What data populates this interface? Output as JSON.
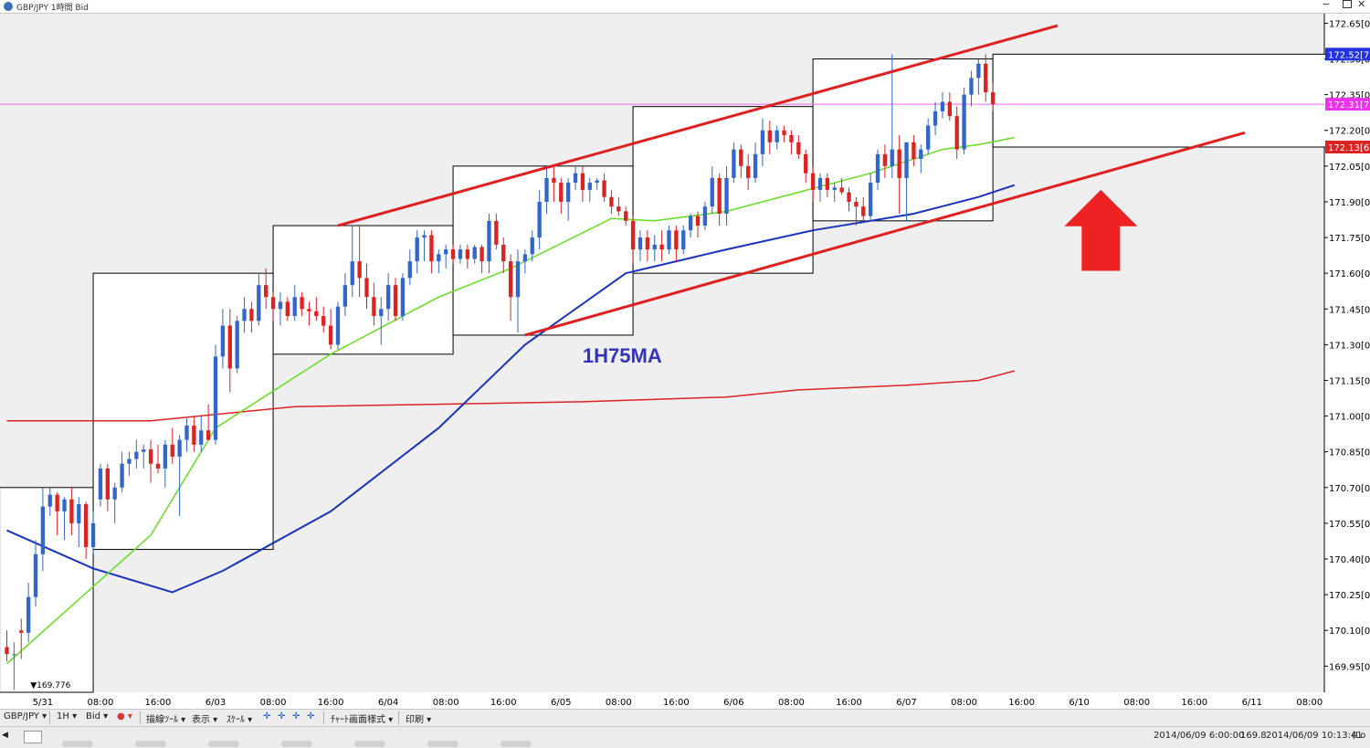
{
  "window": {
    "title": "GBP/JPY 1時間 Bid"
  },
  "colors": {
    "bull": "#3366cc",
    "bear": "#dd2222",
    "ma_green": "#66dd22",
    "ma_blue": "#1a33bb",
    "ma_red": "#dd2222",
    "trendline": "#e02020",
    "box": "#000000",
    "plot_bg": "#efefef",
    "box_fill": "#ffffff",
    "hline_magenta": "#ee66ee",
    "arrow": "#ee2222",
    "label_blue_bg": "#2233dd",
    "label_magenta_bg": "#ee33ee",
    "label_red_bg": "#dd2222",
    "annotation": "#3333bb"
  },
  "chart_data": {
    "type": "candlestick",
    "title": "GBP/JPY 1時間 Bid",
    "ylim": [
      169.84,
      172.69
    ],
    "yticks": [
      "172.65[0]",
      "172.50[0]",
      "172.35[0]",
      "172.20[0]",
      "172.05[0]",
      "171.90[0]",
      "171.75[0]",
      "171.60[0]",
      "171.45[0]",
      "171.30[0]",
      "171.15[0]",
      "171.00[0]",
      "170.85[0]",
      "170.70[0]",
      "170.55[0]",
      "170.40[0]",
      "170.25[0]",
      "170.10[0]",
      "169.95[0]"
    ],
    "ytick_values": [
      172.65,
      172.5,
      172.35,
      172.2,
      172.05,
      171.9,
      171.75,
      171.6,
      171.45,
      171.3,
      171.15,
      171.0,
      170.85,
      170.7,
      170.55,
      170.4,
      170.25,
      170.1,
      169.95
    ],
    "xticks": [
      "5/31",
      "08:00",
      "16:00",
      "6/03",
      "08:00",
      "16:00",
      "6/04",
      "08:00",
      "16:00",
      "6/05",
      "08:00",
      "16:00",
      "6/06",
      "08:00",
      "16:00",
      "6/07",
      "08:00",
      "16:00",
      "6/10",
      "08:00",
      "16:00",
      "6/11",
      "08:00"
    ],
    "xtick_bars": [
      5,
      13,
      21,
      29,
      37,
      45,
      53,
      61,
      69,
      77,
      85,
      93,
      101,
      109,
      117,
      125,
      133,
      141,
      149,
      157,
      165,
      173,
      181
    ],
    "bar_count_visible": 184,
    "bar_offset": 0.95,
    "candles": [
      {
        "o": 170.03,
        "h": 170.1,
        "l": 169.97,
        "c": 170.0
      },
      {
        "o": 170.0,
        "h": 170.05,
        "l": 169.85,
        "c": 170.0
      },
      {
        "o": 170.1,
        "h": 170.15,
        "l": 169.98,
        "c": 170.09
      },
      {
        "o": 170.09,
        "h": 170.3,
        "l": 170.05,
        "c": 170.24
      },
      {
        "o": 170.24,
        "h": 170.48,
        "l": 170.2,
        "c": 170.42
      },
      {
        "o": 170.42,
        "h": 170.7,
        "l": 170.35,
        "c": 170.62
      },
      {
        "o": 170.62,
        "h": 170.7,
        "l": 170.58,
        "c": 170.67
      },
      {
        "o": 170.67,
        "h": 170.68,
        "l": 170.5,
        "c": 170.6
      },
      {
        "o": 170.6,
        "h": 170.66,
        "l": 170.48,
        "c": 170.65
      },
      {
        "o": 170.65,
        "h": 170.7,
        "l": 170.5,
        "c": 170.55
      },
      {
        "o": 170.55,
        "h": 170.66,
        "l": 170.45,
        "c": 170.63
      },
      {
        "o": 170.63,
        "h": 170.64,
        "l": 170.4,
        "c": 170.45
      },
      {
        "o": 170.45,
        "h": 170.6,
        "l": 170.42,
        "c": 170.55
      },
      {
        "o": 170.65,
        "h": 170.8,
        "l": 170.62,
        "c": 170.78
      },
      {
        "o": 170.78,
        "h": 170.8,
        "l": 170.6,
        "c": 170.65
      },
      {
        "o": 170.65,
        "h": 170.72,
        "l": 170.55,
        "c": 170.7
      },
      {
        "o": 170.7,
        "h": 170.85,
        "l": 170.68,
        "c": 170.8
      },
      {
        "o": 170.8,
        "h": 170.85,
        "l": 170.75,
        "c": 170.82
      },
      {
        "o": 170.82,
        "h": 170.9,
        "l": 170.78,
        "c": 170.85
      },
      {
        "o": 170.85,
        "h": 170.88,
        "l": 170.78,
        "c": 170.86
      },
      {
        "o": 170.86,
        "h": 170.9,
        "l": 170.72,
        "c": 170.8
      },
      {
        "o": 170.8,
        "h": 170.88,
        "l": 170.76,
        "c": 170.78
      },
      {
        "o": 170.78,
        "h": 170.9,
        "l": 170.7,
        "c": 170.88
      },
      {
        "o": 170.88,
        "h": 170.95,
        "l": 170.8,
        "c": 170.83
      },
      {
        "o": 170.83,
        "h": 170.92,
        "l": 170.58,
        "c": 170.9
      },
      {
        "o": 170.9,
        "h": 170.99,
        "l": 170.85,
        "c": 170.96
      },
      {
        "o": 170.96,
        "h": 171.0,
        "l": 170.85,
        "c": 170.88
      },
      {
        "o": 170.88,
        "h": 171.0,
        "l": 170.85,
        "c": 170.94
      },
      {
        "o": 170.94,
        "h": 171.05,
        "l": 170.9,
        "c": 170.9
      },
      {
        "o": 170.9,
        "h": 171.3,
        "l": 170.88,
        "c": 171.25
      },
      {
        "o": 171.25,
        "h": 171.45,
        "l": 171.2,
        "c": 171.38
      },
      {
        "o": 171.38,
        "h": 171.45,
        "l": 171.1,
        "c": 171.2
      },
      {
        "o": 171.2,
        "h": 171.42,
        "l": 171.18,
        "c": 171.4
      },
      {
        "o": 171.4,
        "h": 171.5,
        "l": 171.35,
        "c": 171.45
      },
      {
        "o": 171.45,
        "h": 171.48,
        "l": 171.35,
        "c": 171.4
      },
      {
        "o": 171.4,
        "h": 171.6,
        "l": 171.38,
        "c": 171.55
      },
      {
        "o": 171.55,
        "h": 171.62,
        "l": 171.45,
        "c": 171.5
      },
      {
        "o": 171.5,
        "h": 171.52,
        "l": 171.4,
        "c": 171.45
      },
      {
        "o": 171.45,
        "h": 171.52,
        "l": 171.38,
        "c": 171.48
      },
      {
        "o": 171.48,
        "h": 171.5,
        "l": 171.4,
        "c": 171.42
      },
      {
        "o": 171.42,
        "h": 171.55,
        "l": 171.4,
        "c": 171.5
      },
      {
        "o": 171.5,
        "h": 171.52,
        "l": 171.42,
        "c": 171.45
      },
      {
        "o": 171.45,
        "h": 171.48,
        "l": 171.38,
        "c": 171.44
      },
      {
        "o": 171.44,
        "h": 171.5,
        "l": 171.4,
        "c": 171.42
      },
      {
        "o": 171.42,
        "h": 171.46,
        "l": 171.35,
        "c": 171.38
      },
      {
        "o": 171.38,
        "h": 171.45,
        "l": 171.28,
        "c": 171.3
      },
      {
        "o": 171.3,
        "h": 171.48,
        "l": 171.28,
        "c": 171.46
      },
      {
        "o": 171.46,
        "h": 171.6,
        "l": 171.42,
        "c": 171.55
      },
      {
        "o": 171.55,
        "h": 171.8,
        "l": 171.5,
        "c": 171.65
      },
      {
        "o": 171.65,
        "h": 171.8,
        "l": 171.5,
        "c": 171.58
      },
      {
        "o": 171.58,
        "h": 171.64,
        "l": 171.45,
        "c": 171.5
      },
      {
        "o": 171.5,
        "h": 171.56,
        "l": 171.38,
        "c": 171.42
      },
      {
        "o": 171.42,
        "h": 171.5,
        "l": 171.3,
        "c": 171.45
      },
      {
        "o": 171.45,
        "h": 171.6,
        "l": 171.4,
        "c": 171.55
      },
      {
        "o": 171.55,
        "h": 171.58,
        "l": 171.4,
        "c": 171.42
      },
      {
        "o": 171.42,
        "h": 171.6,
        "l": 171.4,
        "c": 171.58
      },
      {
        "o": 171.58,
        "h": 171.7,
        "l": 171.55,
        "c": 171.65
      },
      {
        "o": 171.65,
        "h": 171.78,
        "l": 171.6,
        "c": 171.75
      },
      {
        "o": 171.75,
        "h": 171.78,
        "l": 171.65,
        "c": 171.76
      },
      {
        "o": 171.76,
        "h": 171.78,
        "l": 171.6,
        "c": 171.65
      },
      {
        "o": 171.65,
        "h": 171.7,
        "l": 171.6,
        "c": 171.68
      },
      {
        "o": 171.68,
        "h": 171.72,
        "l": 171.62,
        "c": 171.7
      },
      {
        "o": 171.7,
        "h": 171.72,
        "l": 171.64,
        "c": 171.66
      },
      {
        "o": 171.66,
        "h": 171.72,
        "l": 171.64,
        "c": 171.7
      },
      {
        "o": 171.7,
        "h": 171.72,
        "l": 171.62,
        "c": 171.66
      },
      {
        "o": 171.66,
        "h": 171.72,
        "l": 171.64,
        "c": 171.71
      },
      {
        "o": 171.71,
        "h": 171.72,
        "l": 171.6,
        "c": 171.65
      },
      {
        "o": 171.65,
        "h": 171.85,
        "l": 171.6,
        "c": 171.82
      },
      {
        "o": 171.82,
        "h": 171.85,
        "l": 171.7,
        "c": 171.72
      },
      {
        "o": 171.72,
        "h": 171.75,
        "l": 171.6,
        "c": 171.65
      },
      {
        "o": 171.65,
        "h": 171.68,
        "l": 171.4,
        "c": 171.5
      },
      {
        "o": 171.5,
        "h": 171.7,
        "l": 171.35,
        "c": 171.65
      },
      {
        "o": 171.65,
        "h": 171.7,
        "l": 171.6,
        "c": 171.68
      },
      {
        "o": 171.68,
        "h": 171.78,
        "l": 171.65,
        "c": 171.75
      },
      {
        "o": 171.75,
        "h": 171.95,
        "l": 171.7,
        "c": 171.9
      },
      {
        "o": 171.9,
        "h": 172.05,
        "l": 171.85,
        "c": 172.0
      },
      {
        "o": 172.0,
        "h": 172.05,
        "l": 171.9,
        "c": 171.98
      },
      {
        "o": 171.98,
        "h": 172.0,
        "l": 171.85,
        "c": 171.9
      },
      {
        "o": 171.9,
        "h": 172.0,
        "l": 171.82,
        "c": 171.98
      },
      {
        "o": 171.98,
        "h": 172.05,
        "l": 171.95,
        "c": 172.02
      },
      {
        "o": 172.02,
        "h": 172.05,
        "l": 171.9,
        "c": 171.95
      },
      {
        "o": 171.95,
        "h": 172.0,
        "l": 171.9,
        "c": 171.98
      },
      {
        "o": 171.98,
        "h": 172.0,
        "l": 171.95,
        "c": 171.99
      },
      {
        "o": 171.99,
        "h": 172.02,
        "l": 171.9,
        "c": 171.92
      },
      {
        "o": 171.92,
        "h": 171.95,
        "l": 171.85,
        "c": 171.88
      },
      {
        "o": 171.88,
        "h": 171.92,
        "l": 171.84,
        "c": 171.86
      },
      {
        "o": 171.86,
        "h": 171.88,
        "l": 171.8,
        "c": 171.82
      },
      {
        "o": 171.82,
        "h": 171.84,
        "l": 171.64,
        "c": 171.7
      },
      {
        "o": 171.7,
        "h": 171.78,
        "l": 171.65,
        "c": 171.75
      },
      {
        "o": 171.75,
        "h": 171.78,
        "l": 171.65,
        "c": 171.7
      },
      {
        "o": 171.7,
        "h": 171.76,
        "l": 171.65,
        "c": 171.72
      },
      {
        "o": 171.72,
        "h": 171.78,
        "l": 171.65,
        "c": 171.7
      },
      {
        "o": 171.7,
        "h": 171.8,
        "l": 171.68,
        "c": 171.78
      },
      {
        "o": 171.78,
        "h": 171.8,
        "l": 171.65,
        "c": 171.7
      },
      {
        "o": 171.7,
        "h": 171.8,
        "l": 171.68,
        "c": 171.78
      },
      {
        "o": 171.78,
        "h": 171.85,
        "l": 171.75,
        "c": 171.84
      },
      {
        "o": 171.84,
        "h": 171.86,
        "l": 171.75,
        "c": 171.8
      },
      {
        "o": 171.8,
        "h": 171.9,
        "l": 171.78,
        "c": 171.88
      },
      {
        "o": 171.88,
        "h": 172.05,
        "l": 171.85,
        "c": 172.0
      },
      {
        "o": 172.0,
        "h": 172.02,
        "l": 171.8,
        "c": 171.85
      },
      {
        "o": 171.85,
        "h": 172.05,
        "l": 171.8,
        "c": 172.0
      },
      {
        "o": 172.0,
        "h": 172.15,
        "l": 171.98,
        "c": 172.12
      },
      {
        "o": 172.12,
        "h": 172.14,
        "l": 172.0,
        "c": 172.05
      },
      {
        "o": 172.05,
        "h": 172.1,
        "l": 171.95,
        "c": 172.0
      },
      {
        "o": 172.0,
        "h": 172.15,
        "l": 171.98,
        "c": 172.1
      },
      {
        "o": 172.1,
        "h": 172.25,
        "l": 172.05,
        "c": 172.2
      },
      {
        "o": 172.2,
        "h": 172.24,
        "l": 172.1,
        "c": 172.15
      },
      {
        "o": 172.15,
        "h": 172.22,
        "l": 172.12,
        "c": 172.2
      },
      {
        "o": 172.2,
        "h": 172.22,
        "l": 172.15,
        "c": 172.18
      },
      {
        "o": 172.18,
        "h": 172.2,
        "l": 172.1,
        "c": 172.15
      },
      {
        "o": 172.15,
        "h": 172.18,
        "l": 172.08,
        "c": 172.1
      },
      {
        "o": 172.1,
        "h": 172.12,
        "l": 171.98,
        "c": 172.02
      },
      {
        "o": 172.02,
        "h": 172.05,
        "l": 171.9,
        "c": 171.95
      },
      {
        "o": 171.95,
        "h": 172.02,
        "l": 171.9,
        "c": 172.0
      },
      {
        "o": 172.0,
        "h": 172.02,
        "l": 171.92,
        "c": 171.95
      },
      {
        "o": 171.95,
        "h": 171.98,
        "l": 171.9,
        "c": 171.96
      },
      {
        "o": 171.96,
        "h": 172.0,
        "l": 171.93,
        "c": 171.94
      },
      {
        "o": 171.94,
        "h": 171.96,
        "l": 171.86,
        "c": 171.9
      },
      {
        "o": 171.9,
        "h": 171.92,
        "l": 171.8,
        "c": 171.88
      },
      {
        "o": 171.88,
        "h": 171.92,
        "l": 171.82,
        "c": 171.84
      },
      {
        "o": 171.84,
        "h": 172.02,
        "l": 171.82,
        "c": 171.98
      },
      {
        "o": 171.98,
        "h": 172.12,
        "l": 171.95,
        "c": 172.1
      },
      {
        "o": 172.1,
        "h": 172.14,
        "l": 172.0,
        "c": 172.05
      },
      {
        "o": 172.05,
        "h": 172.52,
        "l": 172.0,
        "c": 172.12
      },
      {
        "o": 172.12,
        "h": 172.18,
        "l": 171.85,
        "c": 172.0
      },
      {
        "o": 172.0,
        "h": 172.15,
        "l": 171.82,
        "c": 172.15
      },
      {
        "o": 172.15,
        "h": 172.18,
        "l": 172.05,
        "c": 172.08
      },
      {
        "o": 172.08,
        "h": 172.14,
        "l": 172.02,
        "c": 172.12
      },
      {
        "o": 172.12,
        "h": 172.25,
        "l": 172.1,
        "c": 172.22
      },
      {
        "o": 172.22,
        "h": 172.32,
        "l": 172.18,
        "c": 172.28
      },
      {
        "o": 172.28,
        "h": 172.36,
        "l": 172.25,
        "c": 172.32
      },
      {
        "o": 172.32,
        "h": 172.36,
        "l": 172.24,
        "c": 172.26
      },
      {
        "o": 172.26,
        "h": 172.3,
        "l": 172.08,
        "c": 172.12
      },
      {
        "o": 172.12,
        "h": 172.38,
        "l": 172.1,
        "c": 172.35
      },
      {
        "o": 172.35,
        "h": 172.45,
        "l": 172.3,
        "c": 172.42
      },
      {
        "o": 172.42,
        "h": 172.5,
        "l": 172.35,
        "c": 172.48
      },
      {
        "o": 172.48,
        "h": 172.52,
        "l": 172.32,
        "c": 172.36
      },
      {
        "o": 172.36,
        "h": 172.4,
        "l": 172.28,
        "c": 172.31
      }
    ],
    "ma_green": [
      [
        0,
        169.96
      ],
      [
        20,
        170.5
      ],
      [
        29,
        170.95
      ],
      [
        45,
        171.26
      ],
      [
        60,
        171.5
      ],
      [
        70,
        171.62
      ],
      [
        84,
        171.83
      ],
      [
        90,
        171.82
      ],
      [
        100,
        171.86
      ],
      [
        110,
        171.94
      ],
      [
        120,
        172.02
      ],
      [
        130,
        172.12
      ],
      [
        135,
        172.14
      ],
      [
        140,
        172.17
      ]
    ],
    "ma_blue": [
      [
        0,
        170.52
      ],
      [
        12,
        170.36
      ],
      [
        23,
        170.26
      ],
      [
        30,
        170.35
      ],
      [
        45,
        170.6
      ],
      [
        60,
        170.95
      ],
      [
        72,
        171.3
      ],
      [
        86,
        171.6
      ],
      [
        100,
        171.7
      ],
      [
        112,
        171.78
      ],
      [
        126,
        171.85
      ],
      [
        135,
        171.92
      ],
      [
        140,
        171.97
      ]
    ],
    "ma_red": [
      [
        0,
        170.98
      ],
      [
        20,
        170.98
      ],
      [
        40,
        171.04
      ],
      [
        60,
        171.05
      ],
      [
        80,
        171.06
      ],
      [
        100,
        171.08
      ],
      [
        110,
        171.11
      ],
      [
        125,
        171.13
      ],
      [
        135,
        171.15
      ],
      [
        140,
        171.19
      ]
    ],
    "trendlines": [
      {
        "from": [
          46,
          171.8
        ],
        "to": [
          146,
          172.64
        ]
      },
      {
        "from": [
          72,
          171.34
        ],
        "to": [
          172,
          172.19
        ]
      }
    ],
    "level_line": {
      "value": 172.31,
      "color": "#ee66ee"
    },
    "range_boxes": [
      {
        "x0": -1,
        "x1": 12,
        "top": 170.7,
        "bottom": 169.84
      },
      {
        "x0": 12,
        "x1": 37,
        "top": 171.6,
        "bottom": 170.44
      },
      {
        "x0": 37,
        "x1": 62,
        "top": 171.8,
        "bottom": 171.26
      },
      {
        "x0": 62,
        "x1": 87,
        "top": 172.05,
        "bottom": 171.34
      },
      {
        "x0": 87,
        "x1": 112,
        "top": 172.3,
        "bottom": 171.6
      },
      {
        "x0": 112,
        "x1": 137,
        "top": 172.5,
        "bottom": 171.82
      },
      {
        "x0": 137,
        "x1": 194,
        "top": 172.52,
        "bottom": 172.13
      }
    ],
    "price_labels": [
      {
        "value": 172.52,
        "text": "172.52[7",
        "bg": "#2233dd"
      },
      {
        "value": 172.31,
        "text": "172.31[7",
        "bg": "#ee33ee"
      },
      {
        "value": 172.13,
        "text": "172.13[6",
        "bg": "#dd2222"
      }
    ],
    "low_marker": {
      "bar": 2,
      "text": "▼169.776"
    },
    "annotation": {
      "text": "1H75MA",
      "bar": 80,
      "value": 171.31
    },
    "up_arrow": {
      "bar": 152,
      "value_top": 171.95,
      "value_bottom": 171.61
    }
  },
  "toolbar": {
    "symbol": "GBP/JPY",
    "timeframe": "1H",
    "side": "Bid",
    "draw_tools": "描線ﾂｰﾙ",
    "display": "表示",
    "scale": "ｽｹｰﾙ",
    "chart_style": "ﾁｬｰﾄ画面様式",
    "print": "印刷"
  },
  "statusbar": {
    "time1": "2014/06/09 6:00:00",
    "price1": "169.8",
    "time2": "2014/06/09 10:13:41",
    "tail": "(Lo"
  }
}
